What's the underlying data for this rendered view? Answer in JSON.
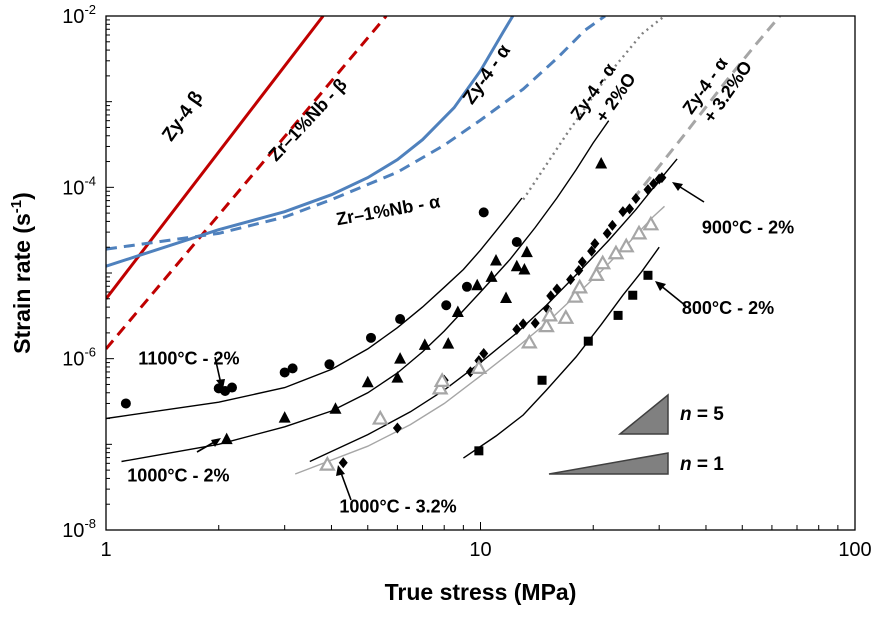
{
  "chart_data": {
    "type": "scatter",
    "xscale": "log",
    "yscale": "log",
    "xlim": [
      1,
      100
    ],
    "ylim": [
      1e-08,
      0.01
    ],
    "xlabel": "True stress (MPa)",
    "ylabel": "Strain rate (s",
    "ylabel_sup": "-1",
    "ylabel_end": ")",
    "grid": false,
    "x_ticks": [
      {
        "value": 1,
        "label": "1"
      },
      {
        "value": 10,
        "label": "10"
      },
      {
        "value": 100,
        "label": "100"
      }
    ],
    "y_ticks": [
      {
        "value": 1e-08,
        "base": "10",
        "exp": "-8"
      },
      {
        "value": 1e-06,
        "base": "10",
        "exp": "-6"
      },
      {
        "value": 0.0001,
        "base": "10",
        "exp": "-4"
      },
      {
        "value": 0.01,
        "base": "10",
        "exp": "-2"
      }
    ],
    "model_curves": [
      {
        "name": "Zy-4 β",
        "color": "#c00000",
        "dash": "solid",
        "points": [
          [
            1.0,
            5e-06
          ],
          [
            3.8,
            0.01
          ]
        ]
      },
      {
        "name": "Zr–1%Nb - β",
        "color": "#c00000",
        "dash": "dashed",
        "points": [
          [
            1.0,
            1.3e-06
          ],
          [
            5.6,
            0.01
          ]
        ]
      },
      {
        "name": "Zy-4 - α",
        "color": "#4f81bd",
        "dash": "solid",
        "points": [
          [
            1.0,
            1.2e-05
          ],
          [
            2.0,
            3.2e-05
          ],
          [
            3.0,
            5.2e-05
          ],
          [
            4.0,
            8.2e-05
          ],
          [
            5.0,
            0.00013
          ],
          [
            6.0,
            0.00021
          ],
          [
            7.0,
            0.00036
          ],
          [
            8.5,
            0.00085
          ],
          [
            10.0,
            0.0023
          ],
          [
            11.5,
            0.0065
          ],
          [
            12.2,
            0.01
          ]
        ]
      },
      {
        "name": "Zr–1%Nb - α",
        "color": "#4f81bd",
        "dash": "dashed",
        "points": [
          [
            1.0,
            1.9e-05
          ],
          [
            2.0,
            2.9e-05
          ],
          [
            3.0,
            4.5e-05
          ],
          [
            4.0,
            7.2e-05
          ],
          [
            6.0,
            0.00015
          ],
          [
            8.0,
            0.00031
          ],
          [
            10.0,
            0.00061
          ],
          [
            13.0,
            0.0014
          ],
          [
            16.0,
            0.0032
          ],
          [
            19.0,
            0.0068
          ],
          [
            21.5,
            0.01
          ]
        ]
      },
      {
        "name": "Zy-4 - α + 2%O",
        "color": "#808080",
        "dash": "dotted",
        "points": [
          [
            13.0,
            7.2e-05
          ],
          [
            17.0,
            0.00042
          ],
          [
            22.0,
            0.0021
          ],
          [
            27.0,
            0.0062
          ],
          [
            31.0,
            0.01
          ]
        ]
      },
      {
        "name": "Zy-4 - α + 3.2%O",
        "color": "#a6a6a6",
        "dash": "dashed",
        "points": [
          [
            25.5,
            7.2e-05
          ],
          [
            35.0,
            0.00041
          ],
          [
            46.0,
            0.0019
          ],
          [
            54.0,
            0.0045
          ],
          [
            63.0,
            0.01
          ]
        ]
      }
    ],
    "fit_lines": [
      {
        "name": "1100°C - 2%",
        "color": "#000000",
        "points": [
          [
            1.0,
            2e-07
          ],
          [
            2.0,
            3.1e-07
          ],
          [
            3.0,
            4.6e-07
          ],
          [
            4.0,
            7.5e-07
          ],
          [
            5.0,
            1.3e-06
          ],
          [
            6.0,
            2.3e-06
          ],
          [
            7.0,
            4e-06
          ],
          [
            8.0,
            6.8e-06
          ],
          [
            9.0,
            1.1e-05
          ],
          [
            10.0,
            1.85e-05
          ],
          [
            11.0,
            3.1e-05
          ],
          [
            12.0,
            5e-05
          ],
          [
            12.9,
            7.5e-05
          ]
        ]
      },
      {
        "name": "1000°C - 2%",
        "color": "#000000",
        "points": [
          [
            1.1,
            6.3e-08
          ],
          [
            2.0,
            1e-07
          ],
          [
            3.0,
            1.6e-07
          ],
          [
            4.0,
            2.45e-07
          ],
          [
            5.0,
            4e-07
          ],
          [
            6.0,
            6.8e-07
          ],
          [
            7.0,
            1.2e-06
          ],
          [
            8.0,
            2.1e-06
          ],
          [
            10.0,
            6e-06
          ],
          [
            12.0,
            1.45e-05
          ],
          [
            14.0,
            3.4e-05
          ],
          [
            16.0,
            7.5e-05
          ],
          [
            18.0,
            0.00016
          ],
          [
            20.0,
            0.00033
          ],
          [
            22.0,
            0.0006
          ]
        ]
      },
      {
        "name": "900°C - 2%",
        "color": "#000000",
        "points": [
          [
            3.5,
            6.3e-08
          ],
          [
            5.0,
            1.3e-07
          ],
          [
            6.5,
            2.4e-07
          ],
          [
            8.0,
            4.3e-07
          ],
          [
            10.0,
            9e-07
          ],
          [
            12.5,
            2e-06
          ],
          [
            15.0,
            4.2e-06
          ],
          [
            18.0,
            9.5e-06
          ],
          [
            22.0,
            2.4e-05
          ],
          [
            26.0,
            5.5e-05
          ],
          [
            30.0,
            0.00012
          ],
          [
            33.5,
            0.000215
          ]
        ]
      },
      {
        "name": "1000°C - 3.2%",
        "color": "#a6a6a6",
        "points": [
          [
            3.2,
            4.5e-08
          ],
          [
            5.0,
            9.5e-08
          ],
          [
            6.5,
            1.7e-07
          ],
          [
            8.0,
            3e-07
          ],
          [
            10.0,
            6.3e-07
          ],
          [
            12.5,
            1.35e-06
          ],
          [
            15.0,
            2.6e-06
          ],
          [
            18.0,
            5.5e-06
          ],
          [
            21.0,
            1.05e-05
          ],
          [
            25.0,
            2.3e-05
          ],
          [
            29.0,
            4.6e-05
          ],
          [
            31.0,
            6e-05
          ]
        ]
      },
      {
        "name": "800°C - 2%",
        "color": "#000000",
        "points": [
          [
            9.0,
            6.9e-08
          ],
          [
            11.0,
            1.25e-07
          ],
          [
            13.0,
            2.2e-07
          ],
          [
            15.0,
            4.3e-07
          ],
          [
            18.0,
            1.05e-06
          ],
          [
            21.0,
            2.5e-06
          ],
          [
            24.0,
            5.5e-06
          ],
          [
            27.0,
            1.05e-05
          ],
          [
            30.0,
            2e-05
          ]
        ]
      }
    ],
    "series": [
      {
        "name": "1100°C - 2%",
        "marker": "circle",
        "color": "#000000",
        "points": [
          [
            1.13,
            3e-07
          ],
          [
            2.0,
            4.5e-07
          ],
          [
            2.17,
            4.6e-07
          ],
          [
            2.08,
            4.2e-07
          ],
          [
            3.0,
            6.9e-07
          ],
          [
            3.15,
            7.7e-07
          ],
          [
            3.95,
            8.6e-07
          ],
          [
            5.1,
            1.75e-06
          ],
          [
            6.1,
            2.9e-06
          ],
          [
            8.1,
            4.2e-06
          ],
          [
            9.2,
            6.9e-06
          ],
          [
            10.2,
            5.1e-05
          ],
          [
            12.5,
            2.3e-05
          ]
        ]
      },
      {
        "name": "1000°C - 2%",
        "marker": "triangle",
        "color": "#000000",
        "points": [
          [
            2.1,
            1.15e-07
          ],
          [
            3.0,
            2.05e-07
          ],
          [
            4.1,
            2.6e-07
          ],
          [
            5.0,
            5.3e-07
          ],
          [
            6.0,
            6e-07
          ],
          [
            6.1,
            1e-06
          ],
          [
            7.1,
            1.45e-06
          ],
          [
            8.2,
            1.5e-06
          ],
          [
            8.7,
            3.5e-06
          ],
          [
            9.8,
            7.2e-06
          ],
          [
            10.7,
            9e-06
          ],
          [
            11.0,
            1.4e-05
          ],
          [
            11.7,
            5.1e-06
          ],
          [
            12.5,
            1.2e-05
          ],
          [
            13.1,
            1.1e-05
          ],
          [
            13.3,
            1.75e-05
          ],
          [
            21.0,
            0.00019
          ]
        ]
      },
      {
        "name": "900°C - 2%",
        "marker": "diamond",
        "color": "#000000",
        "points": [
          [
            4.3,
            6.1e-08
          ],
          [
            6.0,
            1.55e-07
          ],
          [
            8.0,
            5.6e-07
          ],
          [
            9.4,
            7e-07
          ],
          [
            9.9,
            9.5e-07
          ],
          [
            10.2,
            1.15e-06
          ],
          [
            12.5,
            2.2e-06
          ],
          [
            13.0,
            2.55e-06
          ],
          [
            14.0,
            2.6e-06
          ],
          [
            15.1,
            3.8e-06
          ],
          [
            15.4,
            5.4e-06
          ],
          [
            16.0,
            6.5e-06
          ],
          [
            17.4,
            8.4e-06
          ],
          [
            18.3,
            1.07e-05
          ],
          [
            18.7,
            1.35e-05
          ],
          [
            19.8,
            1.8e-05
          ],
          [
            20.2,
            2.2e-05
          ],
          [
            21.8,
            2.9e-05
          ],
          [
            22.5,
            3.6e-05
          ],
          [
            24.0,
            5.2e-05
          ],
          [
            25.0,
            5.6e-05
          ],
          [
            26.0,
            7.4e-05
          ],
          [
            28.0,
            9.4e-05
          ],
          [
            29.0,
            0.00011
          ],
          [
            30.0,
            0.000125
          ],
          [
            30.5,
            0.00013
          ]
        ]
      },
      {
        "name": "1000°C - 3.2%",
        "marker": "triangle-open",
        "color": "#a6a6a6",
        "points": [
          [
            3.9,
            5.8e-08
          ],
          [
            5.4,
            2e-07
          ],
          [
            7.8,
            4.5e-07
          ],
          [
            7.9,
            5.5e-07
          ],
          [
            9.9,
            7.8e-07
          ],
          [
            13.5,
            1.55e-06
          ],
          [
            15.0,
            2.4e-06
          ],
          [
            15.3,
            3.2e-06
          ],
          [
            16.9,
            3e-06
          ],
          [
            17.9,
            5.3e-06
          ],
          [
            18.4,
            6.8e-06
          ],
          [
            20.4,
            9.5e-06
          ],
          [
            21.2,
            1.3e-05
          ],
          [
            23.0,
            1.7e-05
          ],
          [
            24.5,
            2.05e-05
          ],
          [
            26.5,
            2.9e-05
          ],
          [
            28.5,
            3.7e-05
          ]
        ]
      },
      {
        "name": "800°C - 2%",
        "marker": "square",
        "color": "#000000",
        "points": [
          [
            9.9,
            8.4e-08
          ],
          [
            14.6,
            5.6e-07
          ],
          [
            19.4,
            1.6e-06
          ],
          [
            23.3,
            3.2e-06
          ],
          [
            25.5,
            5.5e-06
          ],
          [
            28.0,
            9.4e-06
          ]
        ]
      }
    ],
    "annotations": [
      {
        "id": "zy4-beta",
        "text": "Zy-4 β",
        "color": "#000000",
        "x": 1.65,
        "y": 0.00062,
        "angle": -55,
        "size": 19
      },
      {
        "id": "zr1nb-beta",
        "text": "Zr–1%Nb - β",
        "color": "#000000",
        "x": 3.55,
        "y": 0.00055,
        "angle": -47,
        "size": 18
      },
      {
        "id": "zy4-alpha",
        "text": "Zy-4 - α",
        "color": "#000000",
        "x": 10.7,
        "y": 0.0019,
        "angle": -55,
        "size": 19
      },
      {
        "id": "zr1nb-alpha",
        "text": "Zr–1%Nb - α",
        "color": "#000000",
        "x": 5.7,
        "y": 4.6e-05,
        "angle": -10,
        "size": 18
      },
      {
        "id": "zy4-alpha-2o",
        "text": "Zy-4 - α",
        "text2": "+ 2%O",
        "color": "#000000",
        "x": 20.6,
        "y": 0.0012,
        "angle": -55,
        "size": 18
      },
      {
        "id": "zy4-alpha-32o",
        "text": "Zy-4 - α",
        "text2": "+ 3.2%O",
        "color": "#000000",
        "x": 41.0,
        "y": 0.0014,
        "angle": -55,
        "size": 18
      },
      {
        "id": "label-900",
        "text": "900°C - 2%",
        "color": "#000000",
        "x": 39.0,
        "y": 2.9e-05,
        "angle": 0,
        "size": 18
      },
      {
        "id": "label-800",
        "text": "800°C - 2%",
        "color": "#000000",
        "x": 34.5,
        "y": 3.3e-06,
        "angle": 0,
        "size": 18
      },
      {
        "id": "label-1100",
        "text": "1100°C - 2%",
        "color": "#000000",
        "x": 1.22,
        "y": 8.6e-07,
        "angle": 0,
        "size": 18
      },
      {
        "id": "label-1000",
        "text": "1000°C - 2%",
        "color": "#000000",
        "x": 1.14,
        "y": 3.7e-08,
        "angle": 0,
        "size": 18
      },
      {
        "id": "label-1000-32",
        "text": "1000°C - 3.2%",
        "color": "#000000",
        "x": 4.2,
        "y": 1.6e-08,
        "angle": 0,
        "size": 18
      }
    ],
    "slope_labels": [
      {
        "id": "slope-5",
        "italic": "n",
        "text": " = 5"
      },
      {
        "id": "slope-1",
        "italic": "n",
        "text": " = 1"
      }
    ]
  }
}
